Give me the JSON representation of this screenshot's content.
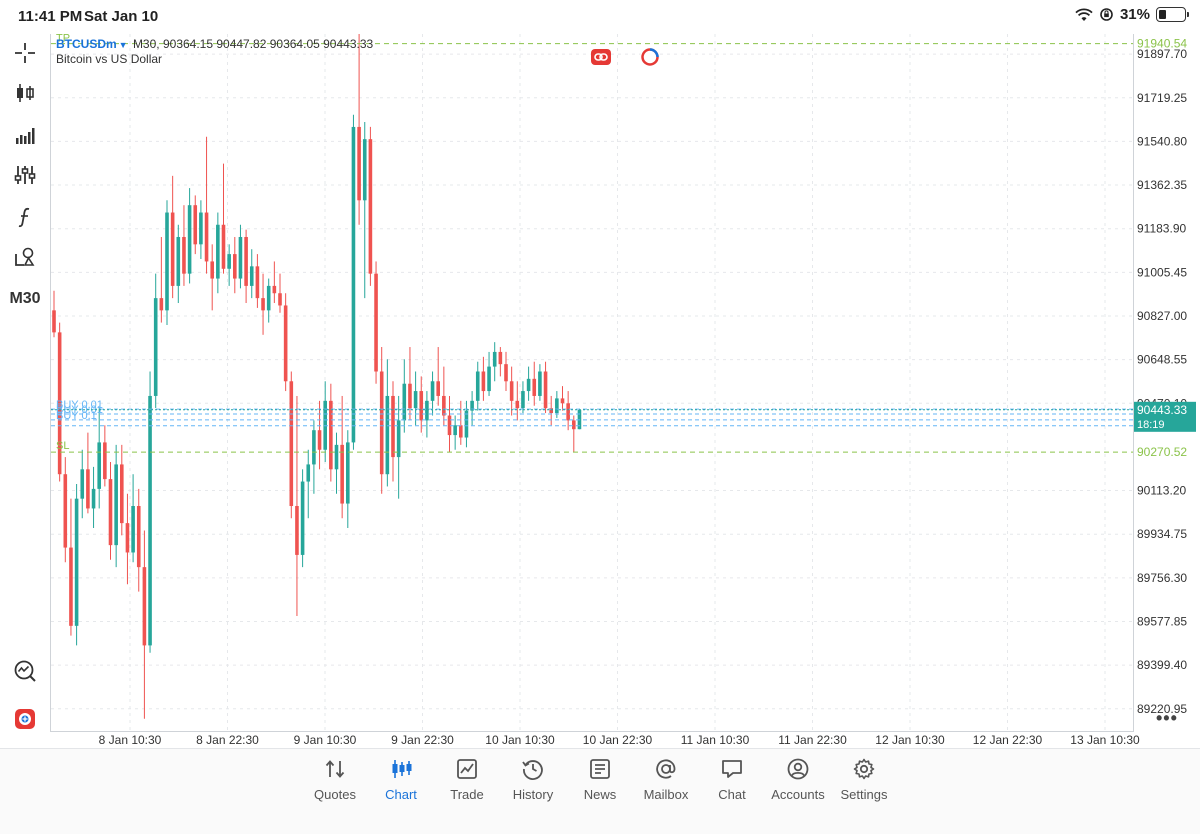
{
  "status_bar": {
    "time": "11:41 PM",
    "date": "Sat Jan 10",
    "battery": "31%"
  },
  "toolbar": {
    "items": [
      {
        "name": "crosshair-tool",
        "icon": "crosshair-icon"
      },
      {
        "name": "chart-type-candles",
        "icon": "candlestick-icon"
      },
      {
        "name": "volume-tool",
        "icon": "bars-signal-icon"
      },
      {
        "name": "indicators-tool",
        "icon": "sliders-icon"
      },
      {
        "name": "functions-tool",
        "icon": "function-icon"
      },
      {
        "name": "objects-tool",
        "icon": "shapes-icon"
      }
    ],
    "timeframe": "M30"
  },
  "chart_header": {
    "symbol": "BTCUSDm",
    "timeframe": "M30,",
    "ohlc": "90364.15 90447.82 90364.05 90443.33",
    "description": "Bitcoin vs US Dollar"
  },
  "colors": {
    "bull": "#26a69a",
    "bear": "#ef5350",
    "accent": "#1a73d9",
    "tp_sl": "#8bc34a",
    "bid_label": "#26a69a",
    "order_line": "#64b5f6"
  },
  "chart_data": {
    "type": "candlestick",
    "symbol": "BTCUSDm",
    "timeframe": "M30",
    "ylim": [
      89130,
      91980
    ],
    "y_ticks": [
      "91897.70",
      "91719.25",
      "91540.80",
      "91362.35",
      "91183.90",
      "91005.45",
      "90827.00",
      "90648.55",
      "90470.10",
      "90113.20",
      "89934.75",
      "89756.30",
      "89577.85",
      "89399.40",
      "89220.95"
    ],
    "x_ticks": [
      "8 Jan 10:30",
      "8 Jan 22:30",
      "9 Jan 10:30",
      "9 Jan 22:30",
      "10 Jan 10:30",
      "10 Jan 22:30",
      "11 Jan 10:30",
      "11 Jan 22:30",
      "12 Jan 10:30",
      "12 Jan 22:30",
      "13 Jan 10:30"
    ],
    "tp_level": {
      "label": "TP",
      "value": "91940.54"
    },
    "sl_level": {
      "label": "SL",
      "value": "90270.52"
    },
    "bid": {
      "value": "90443.33",
      "countdown": "18:19"
    },
    "orders": [
      {
        "label": "BUY 0.01",
        "price": 90446
      },
      {
        "label": "BUY 0.01",
        "price": 90426
      },
      {
        "label": "BUY 0.1",
        "price": 90402
      },
      {
        "label": "",
        "price": 90378
      }
    ],
    "grid": true,
    "candles": [
      [
        90850,
        90930,
        90740,
        90760
      ],
      [
        90760,
        90800,
        90150,
        90180
      ],
      [
        90180,
        90250,
        89820,
        89880
      ],
      [
        89880,
        90080,
        89520,
        89560
      ],
      [
        89560,
        90140,
        89480,
        90080
      ],
      [
        90080,
        90280,
        90000,
        90200
      ],
      [
        90200,
        90350,
        90020,
        90040
      ],
      [
        90040,
        90210,
        89960,
        90120
      ],
      [
        90120,
        90450,
        90040,
        90310
      ],
      [
        90310,
        90380,
        90130,
        90160
      ],
      [
        90160,
        90230,
        89830,
        89890
      ],
      [
        89890,
        90300,
        89800,
        90220
      ],
      [
        90220,
        90300,
        89930,
        89980
      ],
      [
        89980,
        90100,
        89730,
        89860
      ],
      [
        89860,
        90180,
        89820,
        90050
      ],
      [
        90050,
        90120,
        89700,
        89800
      ],
      [
        89800,
        89950,
        89180,
        89480
      ],
      [
        89480,
        90600,
        89450,
        90500
      ],
      [
        90500,
        91000,
        90450,
        90900
      ],
      [
        90900,
        91150,
        90800,
        90850
      ],
      [
        90850,
        91300,
        90790,
        91250
      ],
      [
        91250,
        91400,
        90900,
        90950
      ],
      [
        90950,
        91200,
        90880,
        91150
      ],
      [
        91150,
        91280,
        90950,
        91000
      ],
      [
        91000,
        91350,
        90960,
        91280
      ],
      [
        91280,
        91320,
        91080,
        91120
      ],
      [
        91120,
        91300,
        91060,
        91250
      ],
      [
        91250,
        91560,
        91000,
        91050
      ],
      [
        91050,
        91120,
        90850,
        90980
      ],
      [
        90980,
        91250,
        90920,
        91200
      ],
      [
        91200,
        91450,
        91000,
        91020
      ],
      [
        91020,
        91120,
        90950,
        91080
      ],
      [
        91080,
        91150,
        90920,
        90980
      ],
      [
        90980,
        91200,
        90940,
        91150
      ],
      [
        91150,
        91180,
        90880,
        90950
      ],
      [
        90950,
        91100,
        90900,
        91030
      ],
      [
        91030,
        91080,
        90860,
        90900
      ],
      [
        90900,
        91000,
        90750,
        90850
      ],
      [
        90850,
        90980,
        90800,
        90950
      ],
      [
        90950,
        91050,
        90880,
        90920
      ],
      [
        90920,
        91000,
        90840,
        90870
      ],
      [
        90870,
        90920,
        90520,
        90560
      ],
      [
        90560,
        90600,
        90000,
        90050
      ],
      [
        90050,
        90500,
        89600,
        89850
      ],
      [
        89850,
        90200,
        89800,
        90150
      ],
      [
        90150,
        90280,
        90000,
        90220
      ],
      [
        90220,
        90400,
        90100,
        90360
      ],
      [
        90360,
        90480,
        90200,
        90280
      ],
      [
        90280,
        90560,
        90230,
        90480
      ],
      [
        90480,
        90550,
        90150,
        90200
      ],
      [
        90200,
        90350,
        90100,
        90300
      ],
      [
        90300,
        90500,
        90000,
        90060
      ],
      [
        90060,
        90360,
        89960,
        90310
      ],
      [
        90310,
        91650,
        90280,
        91600
      ],
      [
        91600,
        91980,
        91200,
        91300
      ],
      [
        91300,
        91620,
        90900,
        91550
      ],
      [
        91550,
        91600,
        90950,
        91000
      ],
      [
        91000,
        91050,
        90550,
        90600
      ],
      [
        90600,
        90700,
        90100,
        90180
      ],
      [
        90180,
        90650,
        90130,
        90500
      ],
      [
        90500,
        90560,
        90150,
        90250
      ],
      [
        90250,
        90500,
        90080,
        90400
      ],
      [
        90400,
        90650,
        90350,
        90550
      ],
      [
        90550,
        90700,
        90400,
        90450
      ],
      [
        90450,
        90600,
        90380,
        90520
      ],
      [
        90520,
        90580,
        90350,
        90400
      ],
      [
        90400,
        90520,
        90330,
        90480
      ],
      [
        90480,
        90600,
        90420,
        90560
      ],
      [
        90560,
        90700,
        90460,
        90500
      ],
      [
        90500,
        90620,
        90380,
        90420
      ],
      [
        90420,
        90500,
        90270,
        90340
      ],
      [
        90340,
        90420,
        90280,
        90380
      ],
      [
        90380,
        90480,
        90300,
        90330
      ],
      [
        90330,
        90480,
        90290,
        90440
      ],
      [
        90440,
        90520,
        90380,
        90480
      ],
      [
        90480,
        90640,
        90440,
        90600
      ],
      [
        90600,
        90660,
        90480,
        90520
      ],
      [
        90520,
        90680,
        90500,
        90620
      ],
      [
        90620,
        90720,
        90560,
        90680
      ],
      [
        90680,
        90700,
        90580,
        90630
      ],
      [
        90630,
        90680,
        90520,
        90560
      ],
      [
        90560,
        90620,
        90420,
        90480
      ],
      [
        90480,
        90560,
        90400,
        90450
      ],
      [
        90450,
        90560,
        90430,
        90520
      ],
      [
        90520,
        90620,
        90480,
        90570
      ],
      [
        90570,
        90640,
        90460,
        90500
      ],
      [
        90500,
        90630,
        90480,
        90600
      ],
      [
        90600,
        90640,
        90430,
        90450
      ],
      [
        90450,
        90500,
        90380,
        90430
      ],
      [
        90430,
        90520,
        90410,
        90490
      ],
      [
        90490,
        90540,
        90440,
        90470
      ],
      [
        90470,
        90520,
        90360,
        90400
      ],
      [
        90400,
        90420,
        90270,
        90364
      ],
      [
        90364,
        90448,
        90364,
        90443
      ]
    ]
  },
  "more_button": "•••",
  "tabs": [
    {
      "label": "Quotes",
      "icon": "quotes-icon"
    },
    {
      "label": "Chart",
      "icon": "chart-icon"
    },
    {
      "label": "Trade",
      "icon": "trade-icon"
    },
    {
      "label": "History",
      "icon": "history-icon"
    },
    {
      "label": "News",
      "icon": "news-icon"
    },
    {
      "label": "Mailbox",
      "icon": "mailbox-icon"
    },
    {
      "label": "Chat",
      "icon": "chat-icon"
    },
    {
      "label": "Accounts",
      "icon": "accounts-icon"
    },
    {
      "label": "Settings",
      "icon": "settings-icon"
    }
  ]
}
